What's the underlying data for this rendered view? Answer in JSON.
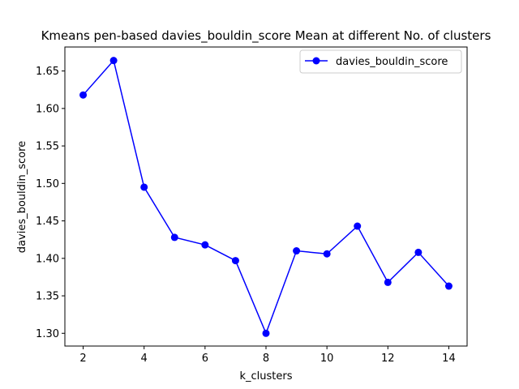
{
  "chart_data": {
    "type": "line",
    "title": "Kmeans pen-based davies_bouldin_score Mean at different No. of clusters",
    "xlabel": "k_clusters",
    "ylabel": "davies_bouldin_score",
    "x": [
      2,
      3,
      4,
      5,
      6,
      7,
      8,
      9,
      10,
      11,
      12,
      13,
      14
    ],
    "series": [
      {
        "name": "davies_bouldin_score",
        "color": "#0000ff",
        "marker": "circle",
        "values": [
          1.618,
          1.664,
          1.495,
          1.428,
          1.418,
          1.397,
          1.3,
          1.41,
          1.406,
          1.443,
          1.368,
          1.408,
          1.363
        ]
      }
    ],
    "xlim": [
      1.4,
      14.6
    ],
    "ylim": [
      1.283,
      1.682
    ],
    "xticks": [
      2,
      4,
      6,
      8,
      10,
      12,
      14
    ],
    "xtick_labels": [
      "2",
      "4",
      "6",
      "8",
      "10",
      "12",
      "14"
    ],
    "yticks": [
      1.3,
      1.35,
      1.4,
      1.45,
      1.5,
      1.55,
      1.6,
      1.65
    ],
    "ytick_labels": [
      "1.30",
      "1.35",
      "1.40",
      "1.45",
      "1.50",
      "1.55",
      "1.60",
      "1.65"
    ],
    "grid": false,
    "legend": "top-right"
  }
}
